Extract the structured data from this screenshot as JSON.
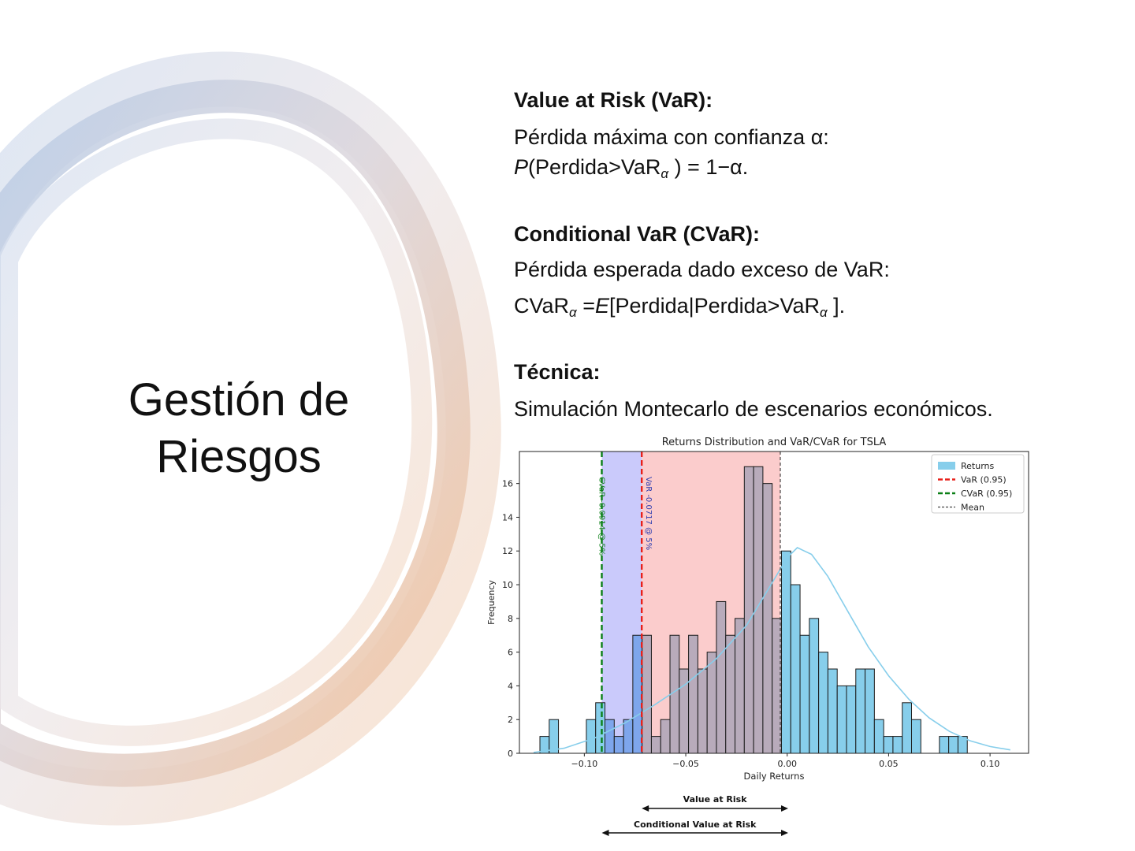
{
  "slide": {
    "title_line1": "Gestión de",
    "title_line2": "Riesgos"
  },
  "sections": {
    "var_heading": "Value at Risk (VaR):",
    "var_line1": "Pérdida máxima con confianza α:",
    "var_line2_a": "P",
    "var_line2_b": "(Perdida>VaR",
    "var_line2_sub": "α",
    "var_line2_c": " ) = 1−α.",
    "cvar_heading": "Conditional VaR (CVaR):",
    "cvar_line1": "Pérdida esperada dado exceso de VaR:",
    "cvar_line2_a": "CVaR",
    "cvar_line2_sub1": "α",
    "cvar_line2_b": " =",
    "cvar_line2_e": "E",
    "cvar_line2_c": "[Perdida|Perdida>VaR",
    "cvar_line2_sub2": "α",
    "cvar_line2_d": " ].",
    "tech_heading": "Técnica:",
    "tech_line": "Simulación Montecarlo de escenarios económicos."
  },
  "chart_data": {
    "type": "bar",
    "title": "Returns Distribution and VaR/CVaR for TSLA",
    "xlabel": "Daily Returns",
    "ylabel": "Frequency",
    "xlim": [
      -0.132,
      0.119
    ],
    "ylim": [
      0,
      17.9
    ],
    "xticks": [
      -0.1,
      -0.05,
      0.0,
      0.05,
      0.1
    ],
    "xtick_labels": [
      "−0.10",
      "−0.05",
      "0.00",
      "0.05",
      "0.10"
    ],
    "yticks": [
      0,
      2,
      4,
      6,
      8,
      10,
      12,
      14,
      16
    ],
    "bin_start": -0.1219,
    "bin_width": 0.00458,
    "counts": [
      1,
      2,
      0,
      0,
      0,
      2,
      3,
      2,
      1,
      2,
      7,
      7,
      1,
      2,
      7,
      5,
      7,
      5,
      6,
      9,
      7,
      8,
      17,
      17,
      16,
      8,
      12,
      10,
      7,
      8,
      6,
      5,
      4,
      4,
      5,
      5,
      2,
      1,
      1,
      3,
      2,
      0,
      0,
      1,
      1,
      1
    ],
    "var": -0.0717,
    "cvar": -0.0914,
    "mean": -0.0034,
    "var_label": "VaR -0.0717 @ 5%",
    "cvar_label": "CVaR -0.0914 @ 5%",
    "kde": [
      [
        -0.125,
        0.05
      ],
      [
        -0.11,
        0.3
      ],
      [
        -0.095,
        0.9
      ],
      [
        -0.08,
        1.8
      ],
      [
        -0.065,
        2.9
      ],
      [
        -0.05,
        4.1
      ],
      [
        -0.035,
        5.6
      ],
      [
        -0.02,
        7.6
      ],
      [
        -0.01,
        9.6
      ],
      [
        0.0,
        11.6
      ],
      [
        0.005,
        12.2
      ],
      [
        0.012,
        11.8
      ],
      [
        0.02,
        10.5
      ],
      [
        0.03,
        8.4
      ],
      [
        0.04,
        6.3
      ],
      [
        0.05,
        4.6
      ],
      [
        0.06,
        3.2
      ],
      [
        0.07,
        2.1
      ],
      [
        0.08,
        1.3
      ],
      [
        0.09,
        0.75
      ],
      [
        0.1,
        0.4
      ],
      [
        0.11,
        0.2
      ]
    ],
    "legend_position": "top-right",
    "legend": [
      "Returns",
      "VaR (0.95)",
      "CVaR (0.95)",
      "Mean"
    ],
    "colors": {
      "bar": "#87ceeb",
      "bar_blue": "#7ea6ec",
      "bar_grey": "#b8abbb",
      "var_line": "#e8201a",
      "cvar_line": "#0a7f16",
      "mean_line": "#444444",
      "kde": "#87ceeb",
      "cvar_region": "#c7c7fb",
      "var_region": "#fbc9c9"
    },
    "annotations": {
      "value_at_risk": "Value at Risk",
      "conditional_value_at_risk": "Conditional Value at Risk"
    }
  },
  "decor_colors": {
    "ring_blue": "#b9cde6",
    "ring_peach": "#f2c7a3",
    "ring_grey": "#d9d6dc"
  }
}
